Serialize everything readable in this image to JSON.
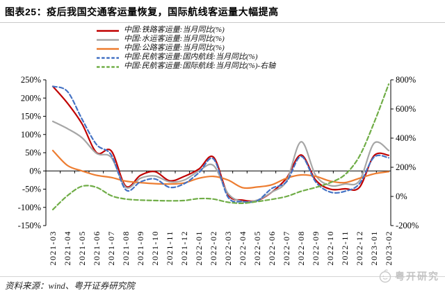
{
  "title": "图表25：疫后我国交通客运量恢复，国际航线客运量大幅提高",
  "source_note": "资料来源：wind、粤开证券研究院",
  "watermark": "粤开研究",
  "colors": {
    "rail": "#C00000",
    "water": "#A6A6A6",
    "road": "#ED7D31",
    "air_domestic": "#4472C4",
    "air_international": "#70AD47",
    "axis": "#000000",
    "rule": "#c9c9c9"
  },
  "chart_data": {
    "type": "line",
    "smooth": true,
    "grid": false,
    "legend_position": "top",
    "x_labels": [
      "2021-03",
      "2021-04",
      "2021-05",
      "2021-06",
      "2021-07",
      "2021-08",
      "2021-09",
      "2021-10",
      "2021-11",
      "2021-12",
      "2022-01",
      "2022-02",
      "2022-03",
      "2022-04",
      "2022-05",
      "2022-06",
      "2022-07",
      "2022-08",
      "2022-09",
      "2022-10",
      "2022-11",
      "2022-12",
      "2023-01",
      "2023-02"
    ],
    "left_axis": {
      "min": -150,
      "max": 250,
      "ticks": [
        250,
        200,
        150,
        100,
        50,
        0,
        -50,
        -100,
        -150
      ],
      "suffix": "%"
    },
    "right_axis": {
      "min": -200,
      "max": 800,
      "ticks": [
        800,
        600,
        400,
        200,
        0,
        -200
      ],
      "suffix": "%"
    },
    "series": [
      {
        "name": "中国:铁路客运量:当月同比(%)",
        "color": "#C00000",
        "style": "solid",
        "axis": "left",
        "values": [
          232,
          186,
          129,
          50,
          55,
          -42,
          -12,
          -2,
          -27,
          -15,
          5,
          38,
          -65,
          -80,
          -81,
          -58,
          -20,
          44,
          -25,
          -50,
          -49,
          -45,
          42,
          43
        ]
      },
      {
        "name": "中国:水运客运量:当月同比(%)",
        "color": "#A6A6A6",
        "style": "solid",
        "axis": "left",
        "values": [
          136,
          116,
          91,
          48,
          37,
          -45,
          -20,
          -14,
          -30,
          -25,
          0,
          15,
          -62,
          -84,
          -80,
          -58,
          -28,
          80,
          -12,
          -40,
          -36,
          -27,
          76,
          56
        ]
      },
      {
        "name": "中国:公路客运量:当月同比(%)",
        "color": "#ED7D31",
        "style": "solid",
        "axis": "left",
        "values": [
          56,
          15,
          0,
          -12,
          -18,
          -28,
          -32,
          -35,
          -36,
          -33,
          -20,
          -15,
          -25,
          -46,
          -44,
          -38,
          -20,
          -11,
          -15,
          -28,
          -32,
          -20,
          -8,
          -2
        ]
      },
      {
        "name": "中国:民航客运量:国内航线:当月同比(%)",
        "color": "#4472C4",
        "style": "dashed",
        "axis": "left",
        "values": [
          232,
          218,
          142,
          72,
          44,
          -52,
          -30,
          -22,
          -45,
          -35,
          -5,
          33,
          -72,
          -84,
          -82,
          -48,
          -30,
          40,
          -30,
          -58,
          -56,
          -35,
          38,
          36
        ]
      },
      {
        "name": "中国:民航客运量:国际航线:当月同比(%)-右轴",
        "color": "#70AD47",
        "style": "dashed",
        "axis": "right",
        "values": [
          -90,
          5,
          70,
          62,
          5,
          -18,
          -25,
          -28,
          -30,
          -28,
          -15,
          -18,
          -40,
          -47,
          -35,
          -20,
          0,
          35,
          62,
          95,
          149,
          276,
          506,
          770
        ]
      }
    ]
  }
}
